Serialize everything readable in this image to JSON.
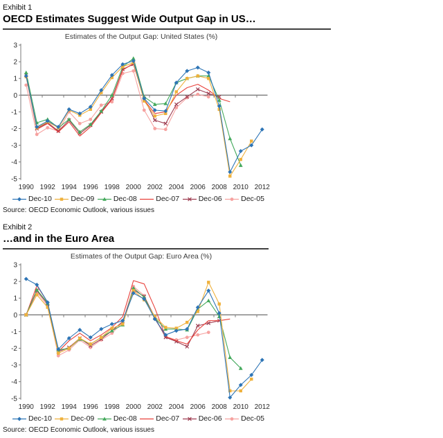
{
  "exhibits": [
    {
      "label": "Exhibit 1",
      "title": "OECD Estimates Suggest Wide Output Gap in US…"
    },
    {
      "label": "Exhibit 2",
      "title": "…and in the Euro Area"
    }
  ],
  "chart_data": [
    {
      "type": "line",
      "title": "Estimates of the Output Gap: United States (%)",
      "source": "Source: OECD Economic Outlook, various issues",
      "ylim": [
        -5,
        3
      ],
      "grid": false,
      "legend_position": "bottom",
      "axis_color": "#7a7a7a",
      "yticks": [
        3,
        2,
        1,
        0,
        -1,
        -2,
        -3,
        -4,
        -5
      ],
      "xticks": [
        "1990",
        "1992",
        "1994",
        "1996",
        "1998",
        "2000",
        "2002",
        "2004",
        "2006",
        "2008",
        "2010",
        "2012"
      ],
      "years": [
        1990,
        1991,
        1992,
        1993,
        1994,
        1995,
        1996,
        1997,
        1998,
        1999,
        2000,
        2001,
        2002,
        2003,
        2004,
        2005,
        2006,
        2007,
        2008,
        2009,
        2010,
        2011,
        2012
      ],
      "series": [
        {
          "name": "Dec-10",
          "color": "#2E75B6",
          "marker": "diamond",
          "values": [
            1.15,
            -1.9,
            -1.55,
            -1.9,
            -0.85,
            -1.1,
            -0.7,
            0.3,
            1.2,
            1.85,
            2.05,
            -0.2,
            -0.9,
            -0.95,
            0.75,
            1.45,
            1.65,
            1.35,
            -0.65,
            -4.6,
            -3.35,
            -3.0,
            -2.05
          ]
        },
        {
          "name": "Dec-09",
          "color": "#EFB13C",
          "marker": "square",
          "values": [
            1.1,
            -1.95,
            -1.6,
            -1.95,
            -0.9,
            -1.2,
            -0.85,
            0.15,
            1.05,
            1.7,
            1.95,
            -0.35,
            -1.25,
            -1.1,
            0.2,
            1.0,
            1.15,
            1.0,
            -0.85,
            -4.85,
            -3.85,
            -2.75,
            null
          ]
        },
        {
          "name": "Dec-08",
          "color": "#44A95C",
          "marker": "triangle",
          "values": [
            1.35,
            -1.65,
            -1.45,
            -1.95,
            -1.45,
            -2.2,
            -1.75,
            -0.95,
            0.0,
            1.7,
            2.2,
            -0.1,
            -0.55,
            -0.5,
            0.75,
            1.0,
            1.15,
            1.15,
            -0.3,
            -2.6,
            -4.2,
            null,
            null
          ]
        },
        {
          "name": "Dec-07",
          "color": "#E8403A",
          "marker": "none",
          "values": [
            1.1,
            -2.05,
            -1.7,
            -2.2,
            -1.6,
            -2.45,
            -1.9,
            -1.05,
            -0.25,
            1.5,
            1.9,
            -0.3,
            -1.1,
            -1.0,
            0.0,
            0.45,
            0.65,
            0.3,
            -0.2,
            -0.4,
            null,
            null,
            null
          ]
        },
        {
          "name": "Dec-06",
          "color": "#9E3D51",
          "marker": "x",
          "values": [
            1.2,
            -2.0,
            -1.65,
            -2.15,
            -1.5,
            -2.3,
            -1.8,
            -1.0,
            -0.2,
            1.55,
            1.85,
            -0.2,
            -1.5,
            -1.7,
            -0.55,
            -0.1,
            0.35,
            0.1,
            -0.1,
            null,
            null,
            null,
            null
          ]
        },
        {
          "name": "Dec-05",
          "color": "#F6A2A0",
          "marker": "circle",
          "values": [
            0.6,
            -2.35,
            -1.95,
            -2.15,
            -1.0,
            -1.7,
            -1.45,
            -0.6,
            -0.4,
            1.3,
            1.45,
            -0.9,
            -2.0,
            -2.05,
            -0.75,
            -0.15,
            0.05,
            -0.1,
            null,
            null,
            null,
            null,
            null
          ]
        }
      ]
    },
    {
      "type": "line",
      "title": "Estimates of the Output Gap: Euro Area (%)",
      "source": "Source: OECD Economic Outlook, various issues",
      "ylim": [
        -5,
        3
      ],
      "grid": false,
      "legend_position": "bottom",
      "axis_color": "#7a7a7a",
      "yticks": [
        3,
        2,
        1,
        0,
        -1,
        -2,
        -3,
        -4,
        -5
      ],
      "xticks": [
        "1990",
        "1992",
        "1994",
        "1996",
        "1998",
        "2000",
        "2002",
        "2004",
        "2006",
        "2008",
        "2010",
        "2012"
      ],
      "years": [
        1990,
        1991,
        1992,
        1993,
        1994,
        1995,
        1996,
        1997,
        1998,
        1999,
        2000,
        2001,
        2002,
        2003,
        2004,
        2005,
        2006,
        2007,
        2008,
        2009,
        2010,
        2011,
        2012
      ],
      "series": [
        {
          "name": "Dec-10",
          "color": "#2E75B6",
          "marker": "diamond",
          "values": [
            2.15,
            1.8,
            0.75,
            -2.05,
            -1.4,
            -0.9,
            -1.35,
            -0.85,
            -0.55,
            -0.35,
            1.3,
            0.95,
            -0.25,
            -1.2,
            -0.95,
            -0.85,
            0.45,
            1.45,
            0.1,
            -4.95,
            -4.2,
            -3.6,
            -2.7
          ]
        },
        {
          "name": "Dec-09",
          "color": "#EFB13C",
          "marker": "square",
          "values": [
            0.0,
            1.2,
            0.45,
            -2.3,
            -2.0,
            -1.4,
            -1.75,
            -1.35,
            -0.8,
            -0.55,
            1.45,
            0.9,
            -0.1,
            -0.75,
            -0.8,
            -0.45,
            0.2,
            1.95,
            0.65,
            -4.55,
            -4.55,
            -3.85,
            null
          ]
        },
        {
          "name": "Dec-08",
          "color": "#44A95C",
          "marker": "triangle",
          "values": [
            0.0,
            1.5,
            0.7,
            -2.1,
            -2.0,
            -1.45,
            -1.75,
            -1.35,
            -0.95,
            -0.6,
            1.6,
            1.05,
            -0.2,
            -0.85,
            -0.85,
            -0.9,
            0.35,
            0.85,
            -0.1,
            -2.55,
            -3.2,
            null,
            null
          ]
        },
        {
          "name": "Dec-07",
          "color": "#E8403A",
          "marker": "none",
          "values": [
            0.0,
            1.75,
            0.75,
            -2.2,
            -1.55,
            -1.1,
            -1.55,
            -1.2,
            -0.75,
            -0.1,
            2.05,
            1.85,
            0.4,
            -1.3,
            -1.55,
            -1.75,
            -0.9,
            -0.35,
            -0.35,
            -0.25,
            null,
            null,
            null
          ]
        },
        {
          "name": "Dec-06",
          "color": "#9E3D51",
          "marker": "x",
          "values": [
            0.0,
            1.45,
            0.65,
            -2.2,
            -1.95,
            -1.4,
            -1.85,
            -1.45,
            -0.95,
            -0.4,
            1.5,
            1.1,
            -0.15,
            -1.35,
            -1.6,
            -1.9,
            -0.65,
            -0.5,
            -0.35,
            null,
            null,
            null,
            null
          ]
        },
        {
          "name": "Dec-05",
          "color": "#F6A2A0",
          "marker": "circle",
          "values": [
            0.0,
            1.35,
            0.55,
            -2.45,
            -2.1,
            -1.5,
            -1.95,
            -1.5,
            -1.1,
            -0.45,
            1.7,
            1.15,
            -0.25,
            -1.3,
            -1.5,
            -1.35,
            -1.2,
            -1.05,
            null,
            null,
            null,
            null,
            null
          ]
        }
      ]
    }
  ]
}
